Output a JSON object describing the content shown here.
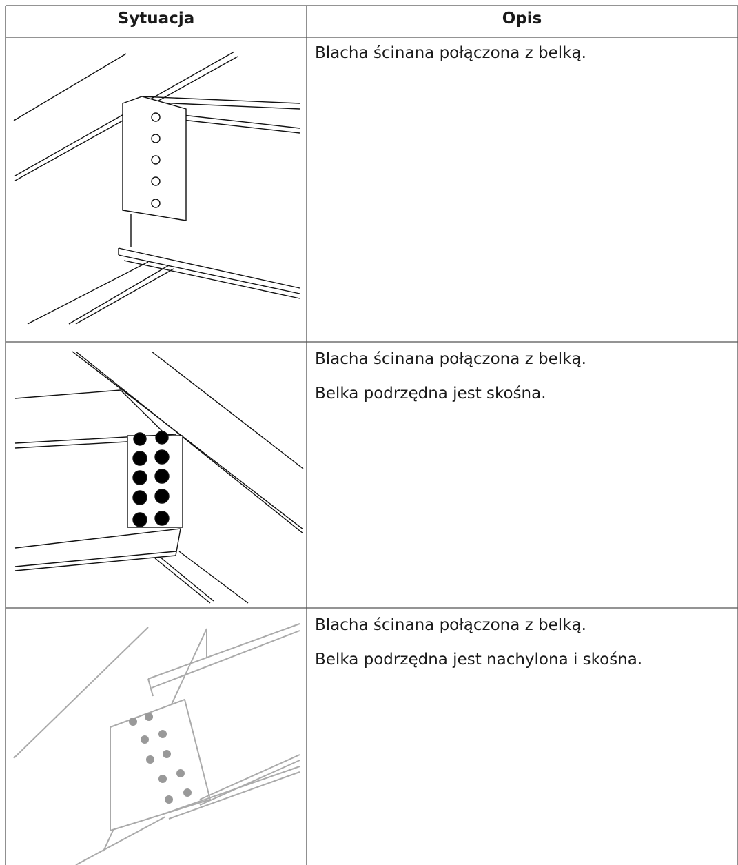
{
  "table": {
    "headers": [
      "Sytuacja",
      "Opis"
    ],
    "rows": [
      {
        "description": [
          "Blacha ścinana połączona z belką."
        ]
      },
      {
        "description": [
          "Blacha ścinana połączona z belką.",
          "Belka podrzędna jest skośna."
        ]
      },
      {
        "description": [
          "Blacha ścinana połączona z belką.",
          "Belka podrzędna jest nachylona i skośna."
        ]
      }
    ]
  }
}
